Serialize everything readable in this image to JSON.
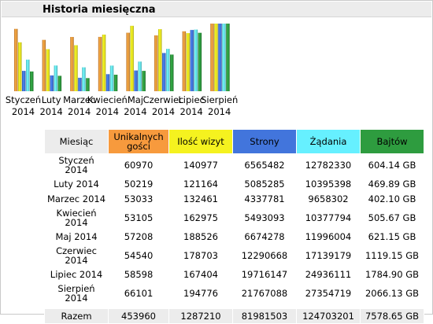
{
  "section_title": "Historia miesięczna",
  "colors": {
    "unique": "#f79a3d",
    "visits": "#f5f21f",
    "pages": "#4275dc",
    "hits": "#66f0ff",
    "bytes": "#2e9c3f"
  },
  "chart_data": {
    "type": "bar",
    "categories": [
      "Styczeń 2014",
      "Luty 2014",
      "Marzec 2014",
      "Kwiecień 2014",
      "Maj 2014",
      "Czerwiec 2014",
      "Lipiec 2014",
      "Sierpień 2014"
    ],
    "category_lines": [
      [
        "Styczeń",
        "2014"
      ],
      [
        "Luty",
        "2014"
      ],
      [
        "Marzec",
        "2014"
      ],
      [
        "Kwiecień",
        "2014"
      ],
      [
        "Maj",
        "2014"
      ],
      [
        "Czerwiec",
        "2014"
      ],
      [
        "Lipiec",
        "2014"
      ],
      [
        "Sierpień",
        "2014"
      ]
    ],
    "series": [
      {
        "values": [
          60970,
          50219,
          53033,
          53105,
          57208,
          54540,
          58598,
          66101
        ]
      },
      {
        "values": [
          140977,
          121164,
          132461,
          162975,
          188526,
          178703,
          167404,
          194776
        ]
      },
      {
        "values": [
          6565482,
          5085285,
          4337781,
          5493093,
          6674278,
          12290668,
          19716147,
          21767088
        ]
      },
      {
        "values": [
          12782330,
          10395398,
          9658302,
          10377794,
          11996004,
          17139179,
          24936111,
          27354719
        ]
      },
      {
        "values": [
          604.14,
          469.89,
          402.1,
          505.67,
          621.15,
          1119.15,
          1784.9,
          2066.13
        ]
      }
    ],
    "legend": false,
    "grid": false
  },
  "table": {
    "headers": {
      "month": "Miesiąc",
      "unique": [
        "Unikalnych",
        "gości"
      ],
      "visits": "Ilość wizyt",
      "pages": "Strony",
      "hits": "Żądania",
      "bytes": "Bajtów"
    },
    "rows": [
      {
        "month": "Styczeń 2014",
        "unique": "60970",
        "visits": "140977",
        "pages": "6565482",
        "hits": "12782330",
        "bytes": "604.14 GB"
      },
      {
        "month": "Luty 2014",
        "unique": "50219",
        "visits": "121164",
        "pages": "5085285",
        "hits": "10395398",
        "bytes": "469.89 GB"
      },
      {
        "month": "Marzec 2014",
        "unique": "53033",
        "visits": "132461",
        "pages": "4337781",
        "hits": "9658302",
        "bytes": "402.10 GB"
      },
      {
        "month": "Kwiecień 2014",
        "unique": "53105",
        "visits": "162975",
        "pages": "5493093",
        "hits": "10377794",
        "bytes": "505.67 GB"
      },
      {
        "month": "Maj 2014",
        "unique": "57208",
        "visits": "188526",
        "pages": "6674278",
        "hits": "11996004",
        "bytes": "621.15 GB"
      },
      {
        "month": "Czerwiec 2014",
        "unique": "54540",
        "visits": "178703",
        "pages": "12290668",
        "hits": "17139179",
        "bytes": "1119.15 GB"
      },
      {
        "month": "Lipiec 2014",
        "unique": "58598",
        "visits": "167404",
        "pages": "19716147",
        "hits": "24936111",
        "bytes": "1784.90 GB"
      },
      {
        "month": "Sierpień 2014",
        "unique": "66101",
        "visits": "194776",
        "pages": "21767088",
        "hits": "27354719",
        "bytes": "2066.13 GB"
      }
    ],
    "total": {
      "month": "Razem",
      "unique": "453960",
      "visits": "1287210",
      "pages": "81981503",
      "hits": "124703201",
      "bytes": "7578.65 GB"
    }
  }
}
